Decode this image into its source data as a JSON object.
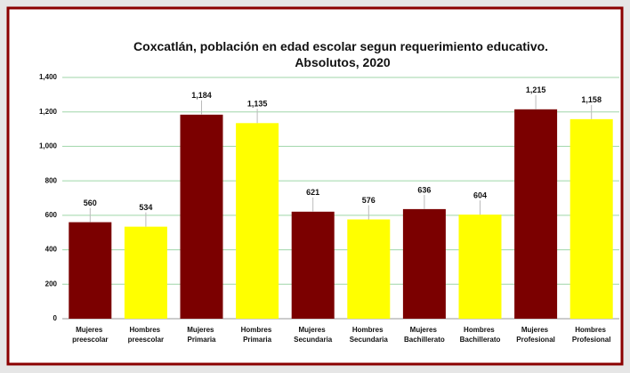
{
  "chart_data": {
    "type": "bar",
    "title": "Coxcatlán,  población en edad escolar segun requerimiento educativo. Absolutos, 2020",
    "categories": [
      "Mujeres preescolar",
      "Hombres preescolar",
      "Mujeres Primaria",
      "Hombres Primaria",
      "Mujeres Secundaria",
      "Hombres Secundaria",
      "Mujeres Bachillerato",
      "Hombres Bachillerato",
      "Mujeres Profesional",
      "Hombres Profesional"
    ],
    "values": [
      560,
      534,
      1184,
      1135,
      621,
      576,
      636,
      604,
      1215,
      1158
    ],
    "value_labels": [
      "560",
      "534",
      "1,184",
      "1,135",
      "621",
      "576",
      "636",
      "604",
      "1,215",
      "1,158"
    ],
    "colors": [
      "#7b0000",
      "#ffff00",
      "#7b0000",
      "#ffff00",
      "#7b0000",
      "#ffff00",
      "#7b0000",
      "#ffff00",
      "#7b0000",
      "#ffff00"
    ],
    "ylim": [
      0,
      1400
    ],
    "yticks": [
      0,
      200,
      400,
      600,
      800,
      {
        "value": 1000,
        "label": "1,000"
      },
      {
        "value": 1200,
        "label": "1,200"
      },
      {
        "value": 1400,
        "label": "1,400"
      }
    ],
    "grid": true
  }
}
